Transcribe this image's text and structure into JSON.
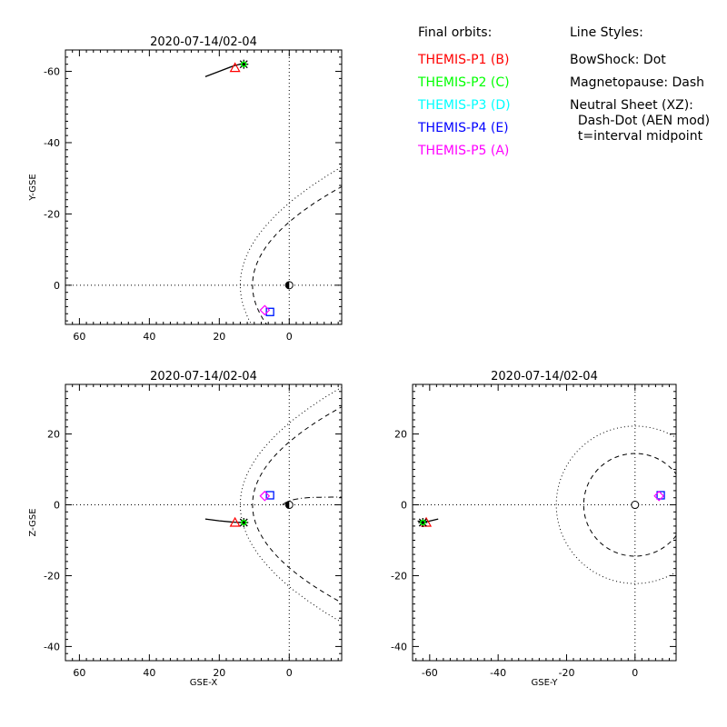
{
  "legend": {
    "orbits_title": "Final orbits:",
    "orbits": [
      {
        "label": "THEMIS-P1 (B)",
        "color": "#ff0000"
      },
      {
        "label": "THEMIS-P2 (C)",
        "color": "#00ff00"
      },
      {
        "label": "THEMIS-P3 (D)",
        "color": "#00ffff"
      },
      {
        "label": "THEMIS-P4 (E)",
        "color": "#0000ff"
      },
      {
        "label": "THEMIS-P5 (A)",
        "color": "#ff00ff"
      }
    ],
    "styles_title": "Line Styles:",
    "styles": [
      "BowShock: Dot",
      "Magnetopause: Dash",
      "Neutral Sheet (XZ):",
      "  Dash-Dot (AEN mod)",
      "  t=interval midpoint"
    ]
  },
  "chart_data": [
    {
      "type": "scatter",
      "title": "2020-07-14/02-04",
      "xlabel": "",
      "ylabel": "Y-GSE",
      "xlim": [
        64,
        -15
      ],
      "ylim": [
        11,
        -66
      ],
      "xticks": [
        60,
        40,
        20,
        0
      ],
      "yticks": [
        -60,
        -40,
        -20,
        0
      ],
      "orbit_track": [
        [
          24,
          -58.5
        ],
        [
          20,
          -60
        ],
        [
          16,
          -61.5
        ],
        [
          13,
          -62.3
        ]
      ],
      "probes": [
        {
          "name": "THEMIS-P1 (B)",
          "x": 15.5,
          "y": -61,
          "marker": "triangle",
          "color": "#ff0000"
        },
        {
          "name": "THEMIS-P2 (C)",
          "x": 13,
          "y": -62,
          "marker": "asterisk",
          "color": "#00ff00"
        },
        {
          "name": "THEMIS-P3 (D)",
          "x": 5.5,
          "y": 7.5,
          "marker": "square",
          "color": "#00ffff"
        },
        {
          "name": "THEMIS-P4 (E)",
          "x": 5.5,
          "y": 7.5,
          "marker": "square",
          "color": "#0000ff"
        },
        {
          "name": "THEMIS-P5 (A)",
          "x": 7,
          "y": 7,
          "marker": "diamond",
          "color": "#ff00ff"
        }
      ],
      "curves": {
        "bowshock": "dot",
        "magnetopause": "dash"
      }
    },
    {
      "type": "scatter",
      "title": "2020-07-14/02-04",
      "xlabel": "GSE-X",
      "ylabel": "Z-GSE",
      "xlim": [
        64,
        -15
      ],
      "ylim": [
        -44,
        34
      ],
      "xticks": [
        60,
        40,
        20,
        0
      ],
      "yticks": [
        20,
        0,
        -20,
        -40
      ],
      "orbit_track": [
        [
          24,
          -4
        ],
        [
          20,
          -4.5
        ],
        [
          16,
          -4.9
        ],
        [
          13,
          -5
        ]
      ],
      "probes": [
        {
          "name": "THEMIS-P1 (B)",
          "x": 15.5,
          "y": -5,
          "marker": "triangle",
          "color": "#ff0000"
        },
        {
          "name": "THEMIS-P2 (C)",
          "x": 13,
          "y": -5,
          "marker": "asterisk",
          "color": "#00ff00"
        },
        {
          "name": "THEMIS-P3 (D)",
          "x": 5.5,
          "y": 2.7,
          "marker": "square",
          "color": "#00ffff"
        },
        {
          "name": "THEMIS-P4 (E)",
          "x": 5.5,
          "y": 2.7,
          "marker": "square",
          "color": "#0000ff"
        },
        {
          "name": "THEMIS-P5 (A)",
          "x": 7,
          "y": 2.5,
          "marker": "diamond",
          "color": "#ff00ff"
        }
      ],
      "curves": {
        "bowshock": "dot",
        "magnetopause": "dash",
        "neutral_sheet": "dash-dot"
      }
    },
    {
      "type": "scatter",
      "title": "2020-07-14/02-04",
      "xlabel": "GSE-Y",
      "ylabel": "",
      "xlim": [
        -65,
        12
      ],
      "ylim": [
        -44,
        34
      ],
      "xticks": [
        -60,
        -40,
        -20,
        0
      ],
      "yticks": [
        20,
        0,
        -20,
        -40
      ],
      "orbit_track": [
        [
          -63.5,
          -4.6
        ],
        [
          -62,
          -4.8
        ],
        [
          -60,
          -4.6
        ],
        [
          -57.5,
          -4
        ]
      ],
      "probes": [
        {
          "name": "THEMIS-P1 (B)",
          "x": -61,
          "y": -5,
          "marker": "triangle",
          "color": "#ff0000"
        },
        {
          "name": "THEMIS-P2 (C)",
          "x": -62,
          "y": -5,
          "marker": "asterisk",
          "color": "#00ff00"
        },
        {
          "name": "THEMIS-P3 (D)",
          "x": 7.5,
          "y": 2.7,
          "marker": "square",
          "color": "#00ffff"
        },
        {
          "name": "THEMIS-P4 (E)",
          "x": 7.5,
          "y": 2.7,
          "marker": "square",
          "color": "#0000ff"
        },
        {
          "name": "THEMIS-P5 (A)",
          "x": 7,
          "y": 2.5,
          "marker": "diamond",
          "color": "#ff00ff"
        }
      ],
      "curves": {
        "bowshock": "dot",
        "magnetopause": "dash"
      }
    }
  ]
}
